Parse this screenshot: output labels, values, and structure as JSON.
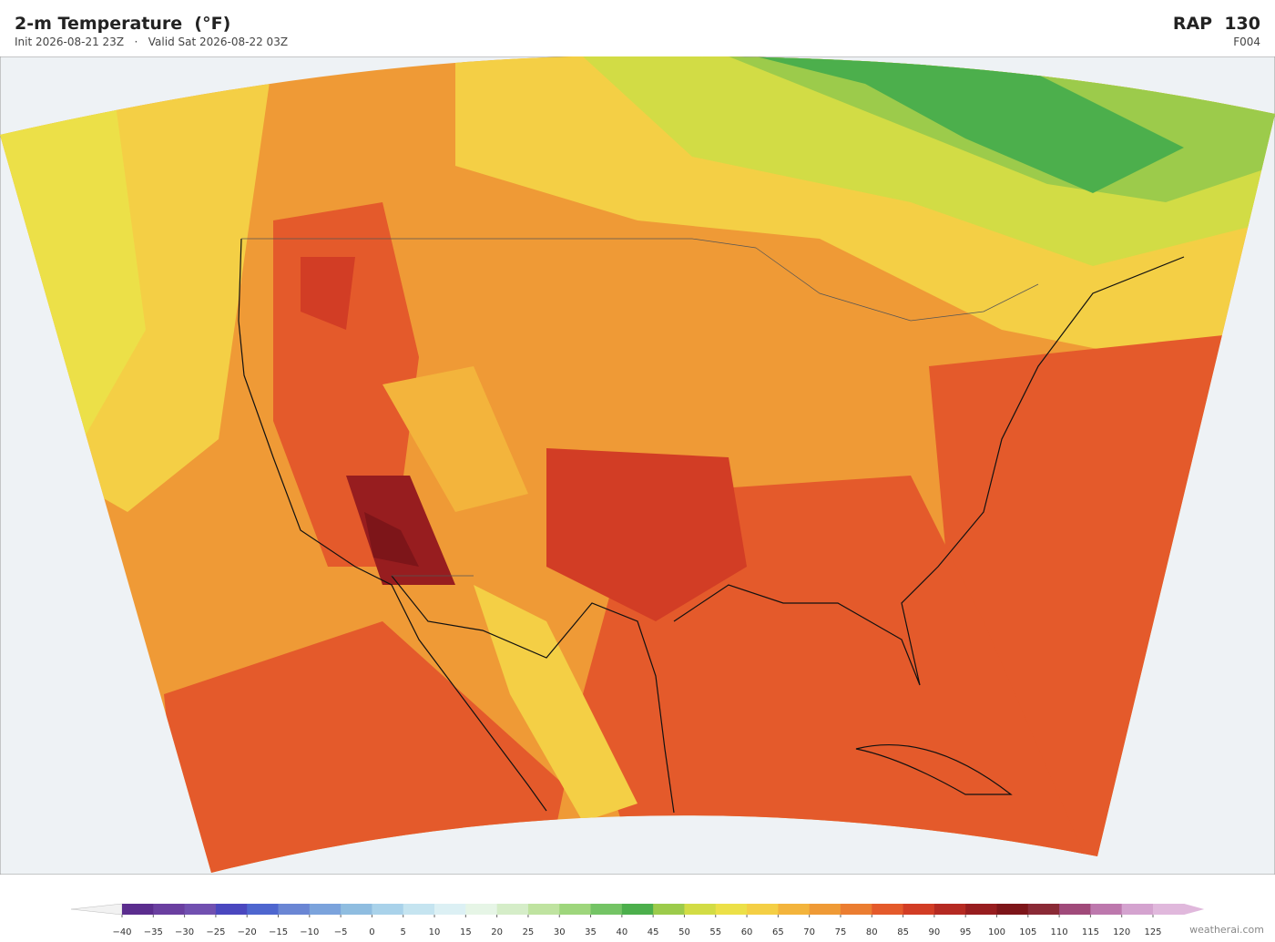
{
  "header": {
    "title": "2-m Temperature  (°F)",
    "init": "Init 2026-08-21 23Z",
    "separator": "·",
    "valid": "Valid Sat 2026-08-22 03Z",
    "model": "RAP  130",
    "forecast_hour": "F004"
  },
  "colorbar": {
    "labels": [
      "−40",
      "−35",
      "−30",
      "−25",
      "−20",
      "−15",
      "−10",
      "−5",
      "0",
      "5",
      "10",
      "15",
      "20",
      "25",
      "30",
      "35",
      "40",
      "45",
      "50",
      "55",
      "60",
      "65",
      "70",
      "75",
      "80",
      "85",
      "90",
      "95",
      "100",
      "105",
      "110",
      "115",
      "120",
      "125"
    ],
    "colors": [
      "#5b2d8e",
      "#6a3fa0",
      "#7150b0",
      "#4a47bf",
      "#4e66cf",
      "#6a86d4",
      "#7ba3dc",
      "#8fbde0",
      "#a9d2ea",
      "#c5e4f0",
      "#dcf0f4",
      "#e6f5e6",
      "#d5edc8",
      "#bfe3a0",
      "#9ed67c",
      "#74c465",
      "#4caf4c",
      "#9ccb4b",
      "#d2dc45",
      "#ece048",
      "#f4cf45",
      "#f3b43c",
      "#ef9a36",
      "#eb7d31",
      "#e45a2b",
      "#d23d25",
      "#b52a22",
      "#971d1f",
      "#7d1519",
      "#8a2a36",
      "#a04a7a",
      "#bd78ad",
      "#d4a3cf",
      "#e0b8dc"
    ]
  },
  "footer": {
    "credit": "weatherai.com"
  }
}
